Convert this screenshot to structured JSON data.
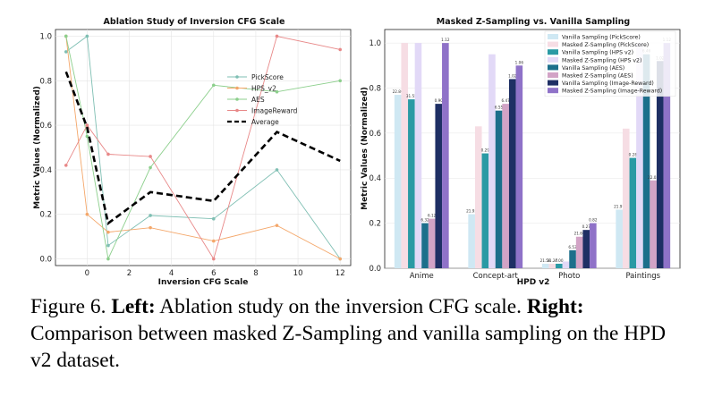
{
  "chart_data": [
    {
      "type": "line",
      "title": "Ablation Study of Inversion CFG Scale",
      "xlabel": "Inversion CFG Scale",
      "ylabel": "Metric Values (Normalized)",
      "xlim": [
        -1.5,
        12.5
      ],
      "ylim": [
        -0.03,
        1.03
      ],
      "xticks": [
        0,
        2,
        4,
        6,
        8,
        10,
        12
      ],
      "yticks": [
        0.0,
        0.2,
        0.4,
        0.6,
        0.8,
        1.0
      ],
      "grid": true,
      "legend_position": "center-right",
      "x": [
        -1,
        0,
        1,
        3,
        6,
        9,
        12
      ],
      "series": [
        {
          "name": "PickScore",
          "color": "#7fbfb3",
          "style": "solid",
          "marker": true,
          "values": [
            0.93,
            1.0,
            0.06,
            0.195,
            0.18,
            0.4,
            0.0
          ]
        },
        {
          "name": "HPS_v2",
          "color": "#f4a76a",
          "style": "solid",
          "marker": true,
          "values": [
            1.0,
            0.2,
            0.12,
            0.14,
            0.08,
            0.15,
            0.0
          ]
        },
        {
          "name": "AES",
          "color": "#8ccf8c",
          "style": "solid",
          "marker": true,
          "values": [
            1.0,
            0.55,
            0.0,
            0.41,
            0.78,
            0.75,
            0.8
          ]
        },
        {
          "name": "ImageReward",
          "color": "#e88888",
          "style": "solid",
          "marker": true,
          "values": [
            0.42,
            0.6,
            0.47,
            0.46,
            0.0,
            1.0,
            0.94
          ]
        },
        {
          "name": "Average",
          "color": "#000000",
          "style": "dashed",
          "marker": false,
          "values": [
            0.84,
            0.59,
            0.16,
            0.3,
            0.26,
            0.57,
            0.44
          ]
        }
      ]
    },
    {
      "type": "bar",
      "title": "Masked Z-Sampling vs. Vanilla Sampling",
      "xlabel": "HPD v2",
      "ylabel": "Metric Values (Normalized)",
      "ylim": [
        0.0,
        1.06
      ],
      "yticks": [
        0.0,
        0.2,
        0.4,
        0.6,
        0.8,
        1.0
      ],
      "grid": true,
      "legend_position": "top-right",
      "categories": [
        "Anime",
        "Concept-art",
        "Photo",
        "Paintings"
      ],
      "series": [
        {
          "name": "Vanilla Sampling (PickScore)",
          "color": "#cfe8f3",
          "values": [
            0.77,
            0.24,
            0.02,
            0.26
          ],
          "labels": [
            "22.86",
            "21.93",
            "21.58",
            "21.97"
          ]
        },
        {
          "name": "Masked Z-Sampling (PickScore)",
          "color": "#f6dde4",
          "values": [
            1.0,
            0.63,
            0.02,
            0.62
          ],
          "labels": [
            "",
            "",
            "21.27",
            ""
          ]
        },
        {
          "name": "Vanilla Sampling (HPS v2)",
          "color": "#2a9aa4",
          "values": [
            0.75,
            0.51,
            0.02,
            0.49
          ],
          "labels": [
            "31.55",
            "0.29",
            "4.00",
            "0.28"
          ]
        },
        {
          "name": "Masked Z-Sampling (HPS v2)",
          "color": "#e2d9f7",
          "values": [
            1.0,
            0.95,
            0.03,
            1.0
          ],
          "labels": [
            "",
            "",
            "",
            ""
          ]
        },
        {
          "name": "Vanilla Sampling (AES)",
          "color": "#1c6f8b",
          "values": [
            0.2,
            0.7,
            0.08,
            0.95
          ],
          "labels": [
            "6.32",
            "6.55",
            "6.53",
            "6.46"
          ]
        },
        {
          "name": "Masked Z-Sampling (AES)",
          "color": "#d2a3c6",
          "values": [
            0.22,
            0.73,
            0.14,
            0.39
          ],
          "labels": [
            "6.12",
            "6.47",
            "21.66",
            "22.05"
          ]
        },
        {
          "name": "Vanilla Sampling (Image-Reward)",
          "color": "#1e2f64",
          "values": [
            0.73,
            0.84,
            0.17,
            0.92
          ],
          "labels": [
            "0.90",
            "1.02",
            "0.27",
            "1.02"
          ]
        },
        {
          "name": "Masked Z-Sampling (Image-Reward)",
          "color": "#8f72c8",
          "values": [
            1.0,
            0.9,
            0.2,
            1.0
          ],
          "labels": [
            "1.12",
            "1.06",
            "0.82",
            "1.12"
          ]
        }
      ],
      "annotations": [
        "23.76",
        "0.32",
        "1.12",
        "31.96",
        "0.30",
        "0.97",
        "0.38",
        "0.50"
      ]
    }
  ],
  "caption": {
    "label": "Figure 6.",
    "left_label": "Left:",
    "left_text": "Ablation study on the inversion CFG scale.",
    "right_label": "Right:",
    "right_text": "Comparison between masked Z-Sampling and vanilla sampling on the HPD v2 dataset."
  }
}
